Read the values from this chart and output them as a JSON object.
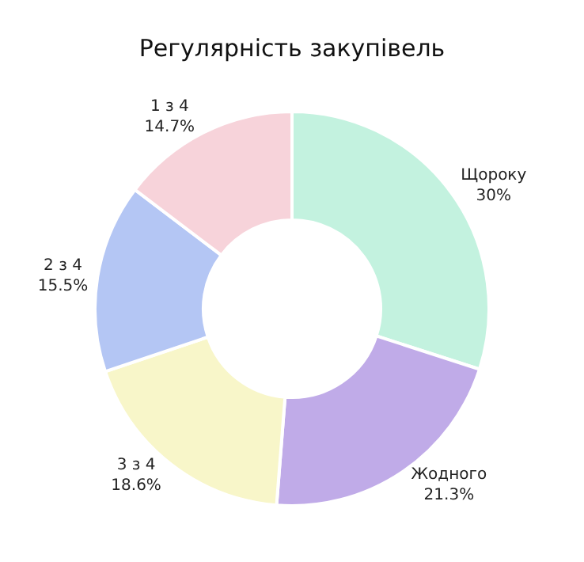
{
  "chart_data": {
    "type": "donut",
    "title": "Регулярність закупівель",
    "categories": [
      "Щороку",
      "Жодного",
      "3 з 4",
      "2 з 4",
      "1 з 4"
    ],
    "values": [
      30,
      21.3,
      18.6,
      15.5,
      14.7
    ],
    "value_labels": [
      "30%",
      "21.3%",
      "18.6%",
      "15.5%",
      "14.7%"
    ],
    "colors": [
      "#c3f2df",
      "#c0abe8",
      "#f8f6c9",
      "#b4c6f4",
      "#f7d3da"
    ],
    "legend": false
  }
}
